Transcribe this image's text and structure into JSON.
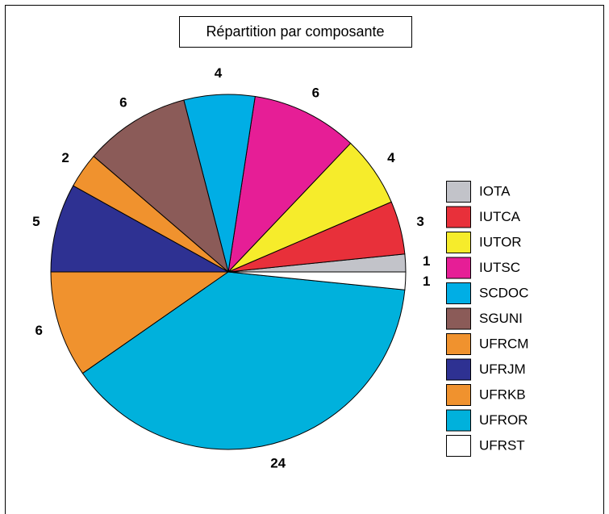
{
  "chart_data": {
    "type": "pie",
    "title": "Répartition par composante",
    "categories": [
      "IOTA",
      "IUTCA",
      "IUTOR",
      "IUTSC",
      "SCDOC",
      "SGUNI",
      "UFRCM",
      "UFRJM",
      "UFRKB",
      "UFROR",
      "UFRST"
    ],
    "values": [
      1,
      3,
      4,
      6,
      4,
      6,
      2,
      5,
      6,
      24,
      1
    ],
    "colors": [
      "#c2c3c9",
      "#e8303a",
      "#f6ec2b",
      "#e61e96",
      "#00aee5",
      "#8b5b58",
      "#f0922e",
      "#2e3192",
      "#f0922e",
      "#00b1dc",
      "#ffffff"
    ],
    "legend": "right"
  }
}
